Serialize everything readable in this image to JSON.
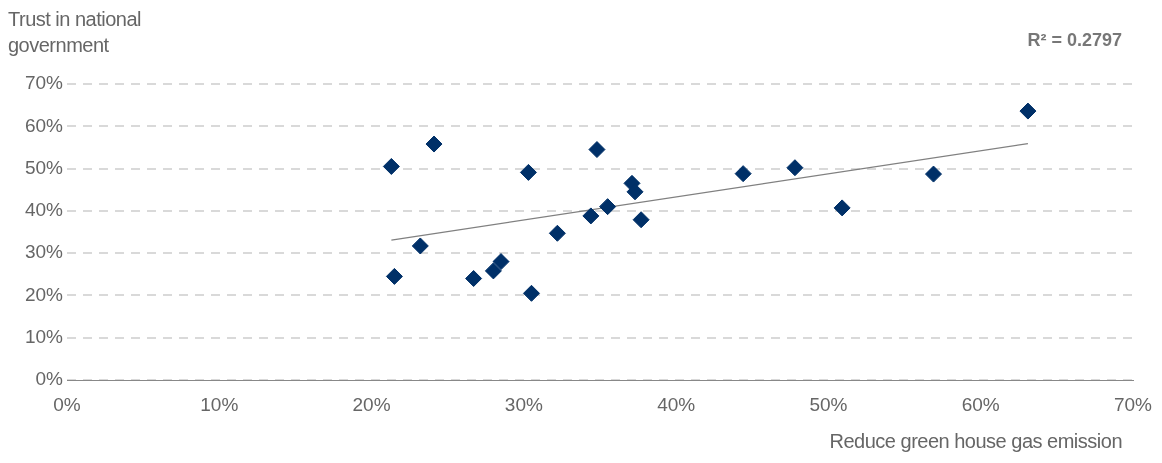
{
  "chart_data": {
    "type": "scatter",
    "xlabel": "Reduce green house gas emission",
    "ylabel": "Trust in national government",
    "annotations": [
      "R² = 0.2797"
    ],
    "x": [
      21.3,
      21.5,
      24.1,
      23.2,
      26.7,
      28.0,
      28.5,
      30.3,
      30.5,
      32.2,
      34.4,
      34.8,
      35.5,
      37.1,
      37.3,
      37.7,
      44.4,
      47.8,
      50.9,
      56.9,
      63.1
    ],
    "series": [
      {
        "color": "#003068",
        "values": [
          50.5,
          24.5,
          55.8,
          31.7,
          24.0,
          25.8,
          28.0,
          49.1,
          20.5,
          34.7,
          38.8,
          54.5,
          41.0,
          46.5,
          44.5,
          37.9,
          48.8,
          50.2,
          40.7,
          48.7,
          63.6
        ]
      },
      {
        "type": "line",
        "color": "#808080",
        "x": [
          21.3,
          63.1
        ],
        "values": [
          33.1,
          55.9
        ],
        "marker": "none"
      }
    ],
    "xlim": [
      0,
      70
    ],
    "ylim": [
      0,
      70
    ],
    "xticks": [
      {
        "value": 0,
        "label": "0%"
      },
      {
        "value": 10,
        "label": "10%"
      },
      {
        "value": 20,
        "label": "20%"
      },
      {
        "value": 30,
        "label": "30%"
      },
      {
        "value": 40,
        "label": "40%"
      },
      {
        "value": 50,
        "label": "50%"
      },
      {
        "value": 60,
        "label": "60%"
      },
      {
        "value": 70,
        "label": "70%"
      }
    ],
    "yticks": [
      {
        "value": 0,
        "label": "0%"
      },
      {
        "value": 10,
        "label": "10%"
      },
      {
        "value": 20,
        "label": "20%"
      },
      {
        "value": 30,
        "label": "30%"
      },
      {
        "value": 40,
        "label": "40%"
      },
      {
        "value": 50,
        "label": "50%"
      },
      {
        "value": 60,
        "label": "60%"
      },
      {
        "value": 70,
        "label": "70%"
      }
    ],
    "grid": "y",
    "legend": false,
    "marker": "diamond"
  }
}
